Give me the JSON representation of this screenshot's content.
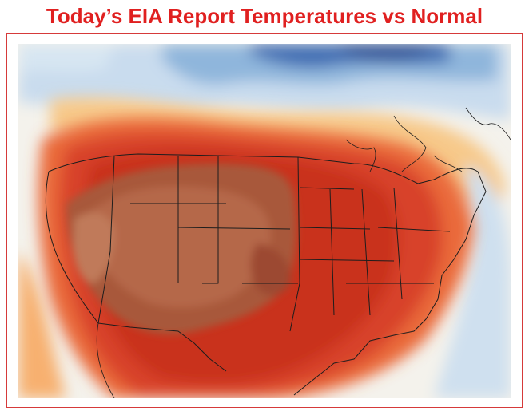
{
  "title": "Today’s EIA Report Temperatures vs Normal",
  "colors": {
    "title": "#e02020",
    "frame_border": "#d63a3a",
    "much_colder": "#2f5fa8",
    "colder": "#8fb6dc",
    "near_normal": "#f2f0e8",
    "warmer": "#f7c98a",
    "much_warmer": "#e9572c",
    "extreme_warm": "#a8583a"
  },
  "map": {
    "region": "Contiguous United States and surroundings",
    "shading": "temperature anomaly vs normal"
  }
}
